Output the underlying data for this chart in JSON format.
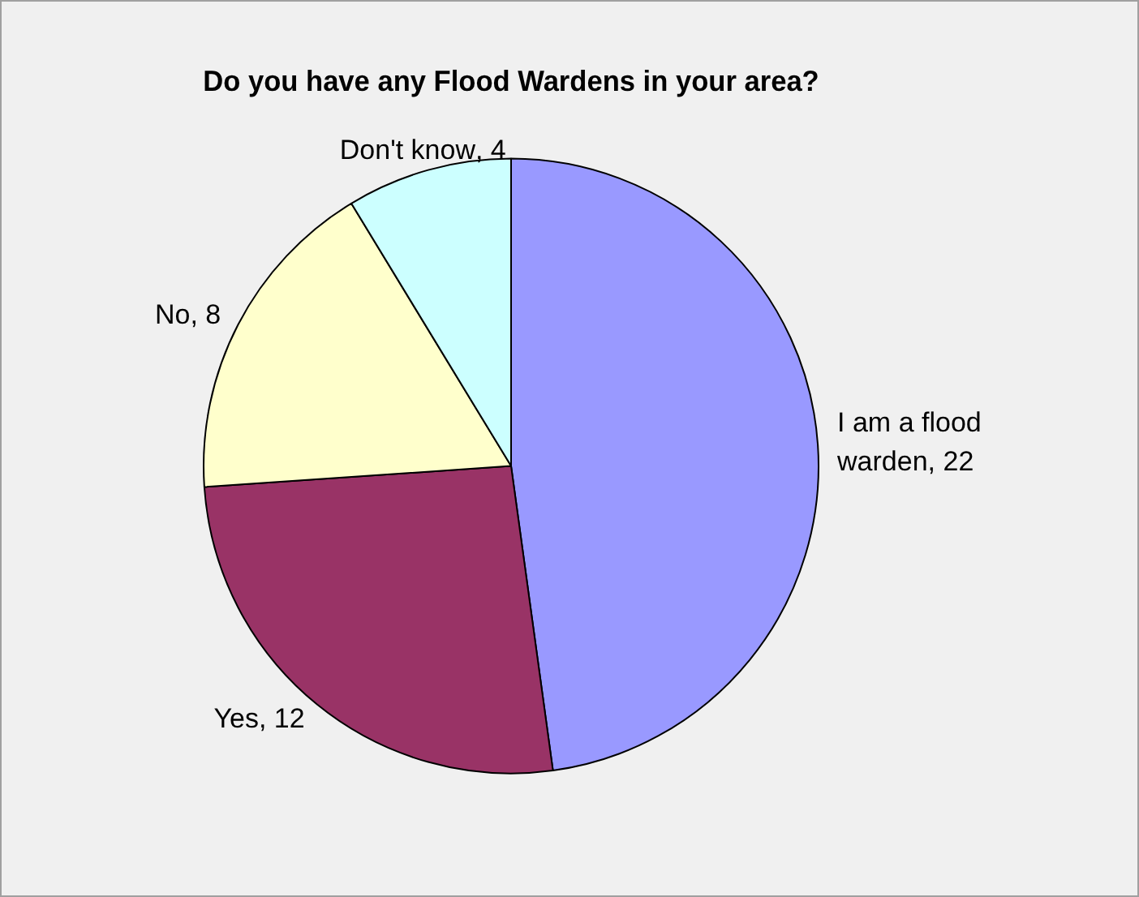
{
  "chart_data": {
    "type": "pie",
    "title": "Do you have any Flood Wardens in your area?",
    "categories": [
      "I am a flood warden",
      "Yes",
      "No",
      "Don't know"
    ],
    "values": [
      22,
      12,
      8,
      4
    ],
    "value_labels": [
      ", 22",
      ", 12",
      ", 8",
      ", 4"
    ],
    "colors": [
      "#9999ff",
      "#993366",
      "#ffffcc",
      "#ccffff"
    ],
    "legend": false
  }
}
